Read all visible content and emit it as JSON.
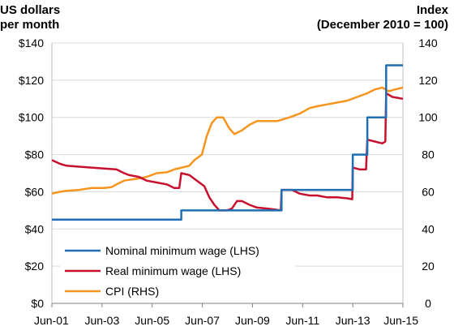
{
  "chart_data": {
    "type": "line",
    "title": "",
    "left_axis": {
      "title_line1": "US dollars",
      "title_line2": "per month",
      "ylim": [
        0,
        140
      ],
      "ticks": [
        "$0",
        "$20",
        "$40",
        "$60",
        "$80",
        "$100",
        "$120",
        "$140"
      ],
      "tick_values": [
        0,
        20,
        40,
        60,
        80,
        100,
        120,
        140
      ]
    },
    "right_axis": {
      "title_line1": "Index",
      "title_line2": "(December 2010 = 100)",
      "ylim": [
        0,
        140
      ],
      "ticks": [
        "0",
        "20",
        "40",
        "60",
        "80",
        "100",
        "120",
        "140"
      ],
      "tick_values": [
        0,
        20,
        40,
        60,
        80,
        100,
        120,
        140
      ]
    },
    "x_axis": {
      "range": [
        2001.42,
        2015.42
      ],
      "ticks": [
        "Jun-01",
        "Jun-03",
        "Jun-05",
        "Jun-07",
        "Jun-09",
        "Jun-11",
        "Jun-13",
        "Jun-15"
      ],
      "tick_values": [
        2001.42,
        2003.42,
        2005.42,
        2007.42,
        2009.42,
        2011.42,
        2013.42,
        2015.42
      ]
    },
    "grid": "horizontal",
    "legend_placement": "bottom-left",
    "series": [
      {
        "name": "Nominal minimum wage (LHS)",
        "axis": "left",
        "color": "#1f6eb4",
        "step": true,
        "points": [
          [
            2001.42,
            45
          ],
          [
            2006.58,
            45
          ],
          [
            2006.58,
            50
          ],
          [
            2010.58,
            50
          ],
          [
            2010.58,
            61
          ],
          [
            2013.42,
            61
          ],
          [
            2013.42,
            80
          ],
          [
            2014.0,
            80
          ],
          [
            2014.0,
            100
          ],
          [
            2014.75,
            100
          ],
          [
            2014.75,
            128
          ],
          [
            2015.42,
            128
          ]
        ]
      },
      {
        "name": "Real minimum wage (LHS)",
        "axis": "left",
        "color": "#c8102e",
        "points": [
          [
            2001.42,
            77
          ],
          [
            2001.75,
            75
          ],
          [
            2002.0,
            74
          ],
          [
            2002.5,
            73.5
          ],
          [
            2003.0,
            73
          ],
          [
            2003.5,
            72.5
          ],
          [
            2004.0,
            72
          ],
          [
            2004.3,
            70
          ],
          [
            2004.5,
            69
          ],
          [
            2004.9,
            68
          ],
          [
            2005.2,
            66
          ],
          [
            2005.6,
            65
          ],
          [
            2006.0,
            64
          ],
          [
            2006.3,
            62
          ],
          [
            2006.5,
            62
          ],
          [
            2006.58,
            70
          ],
          [
            2006.9,
            69
          ],
          [
            2007.2,
            66
          ],
          [
            2007.5,
            63
          ],
          [
            2007.7,
            57
          ],
          [
            2007.9,
            53
          ],
          [
            2008.1,
            50
          ],
          [
            2008.4,
            50
          ],
          [
            2008.6,
            51
          ],
          [
            2008.8,
            55
          ],
          [
            2009.0,
            55
          ],
          [
            2009.3,
            53
          ],
          [
            2009.6,
            51.5
          ],
          [
            2010.0,
            51
          ],
          [
            2010.3,
            50.5
          ],
          [
            2010.55,
            50
          ],
          [
            2010.58,
            61
          ],
          [
            2011.0,
            61
          ],
          [
            2011.3,
            59
          ],
          [
            2011.7,
            58
          ],
          [
            2012.0,
            58
          ],
          [
            2012.4,
            57
          ],
          [
            2012.8,
            57
          ],
          [
            2013.2,
            56.5
          ],
          [
            2013.4,
            56
          ],
          [
            2013.42,
            73
          ],
          [
            2013.7,
            72
          ],
          [
            2013.95,
            72
          ],
          [
            2014.0,
            88
          ],
          [
            2014.3,
            87
          ],
          [
            2014.6,
            86
          ],
          [
            2014.72,
            87
          ],
          [
            2014.75,
            113
          ],
          [
            2015.0,
            111
          ],
          [
            2015.42,
            110
          ]
        ]
      },
      {
        "name": "CPI (RHS)",
        "axis": "right",
        "color": "#f7941d",
        "points": [
          [
            2001.42,
            59
          ],
          [
            2001.75,
            60
          ],
          [
            2002.0,
            60.5
          ],
          [
            2002.5,
            61
          ],
          [
            2003.0,
            62
          ],
          [
            2003.5,
            62
          ],
          [
            2003.8,
            62.5
          ],
          [
            2004.0,
            64
          ],
          [
            2004.3,
            66
          ],
          [
            2004.8,
            67
          ],
          [
            2005.2,
            68
          ],
          [
            2005.6,
            70
          ],
          [
            2006.0,
            70.5
          ],
          [
            2006.3,
            72
          ],
          [
            2006.6,
            73
          ],
          [
            2006.9,
            74
          ],
          [
            2007.1,
            77
          ],
          [
            2007.4,
            80
          ],
          [
            2007.6,
            90
          ],
          [
            2007.8,
            97
          ],
          [
            2008.0,
            100
          ],
          [
            2008.25,
            100
          ],
          [
            2008.5,
            94
          ],
          [
            2008.7,
            91
          ],
          [
            2009.0,
            93
          ],
          [
            2009.3,
            96
          ],
          [
            2009.6,
            98
          ],
          [
            2010.0,
            98
          ],
          [
            2010.4,
            98
          ],
          [
            2010.9,
            100
          ],
          [
            2011.3,
            102
          ],
          [
            2011.7,
            105
          ],
          [
            2012.0,
            106
          ],
          [
            2012.4,
            107
          ],
          [
            2012.8,
            108
          ],
          [
            2013.2,
            109
          ],
          [
            2013.6,
            111
          ],
          [
            2014.0,
            113
          ],
          [
            2014.3,
            115
          ],
          [
            2014.6,
            116
          ],
          [
            2014.85,
            114
          ],
          [
            2015.1,
            115
          ],
          [
            2015.42,
            116
          ]
        ]
      }
    ]
  }
}
